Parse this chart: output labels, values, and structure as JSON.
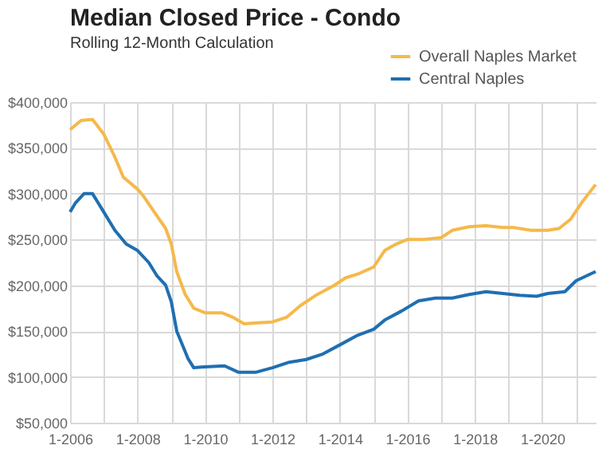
{
  "chart_data": {
    "type": "line",
    "title": "Median Closed Price - Condo",
    "subtitle": "Rolling 12-Month Calculation",
    "xlim": [
      "2006-01",
      "2021-08"
    ],
    "ylim": [
      50000,
      400000
    ],
    "xticks": [
      {
        "value": "2006-01",
        "label": "1-2006"
      },
      {
        "value": "2007-01",
        "label": null
      },
      {
        "value": "2008-01",
        "label": "1-2008"
      },
      {
        "value": "2009-01",
        "label": null
      },
      {
        "value": "2010-01",
        "label": "1-2010"
      },
      {
        "value": "2011-01",
        "label": null
      },
      {
        "value": "2012-01",
        "label": "1-2012"
      },
      {
        "value": "2013-01",
        "label": null
      },
      {
        "value": "2014-01",
        "label": "1-2014"
      },
      {
        "value": "2015-01",
        "label": null
      },
      {
        "value": "2016-01",
        "label": "1-2016"
      },
      {
        "value": "2017-01",
        "label": null
      },
      {
        "value": "2018-01",
        "label": "1-2018"
      },
      {
        "value": "2019-01",
        "label": null
      },
      {
        "value": "2020-01",
        "label": "1-2020"
      },
      {
        "value": "2021-01",
        "label": null
      }
    ],
    "yticks": [
      {
        "value": 50000,
        "label": "$50,000"
      },
      {
        "value": 100000,
        "label": "$100,000"
      },
      {
        "value": 150000,
        "label": "$150,000"
      },
      {
        "value": 200000,
        "label": "$200,000"
      },
      {
        "value": 250000,
        "label": "$250,000"
      },
      {
        "value": 300000,
        "label": "$300,000"
      },
      {
        "value": 350000,
        "label": "$350,000"
      },
      {
        "value": 400000,
        "label": "$400,000"
      }
    ],
    "grid": true,
    "legend": "top right",
    "line_style": "solid",
    "series": [
      {
        "name": "Overall Naples Market",
        "color": "#f5b94a",
        "x": [
          "2006-01",
          "2006-05",
          "2006-09",
          "2007-01",
          "2007-05",
          "2007-08",
          "2008-01",
          "2008-03",
          "2008-07",
          "2008-11",
          "2009-01",
          "2009-03",
          "2009-06",
          "2009-09",
          "2010-01",
          "2010-07",
          "2010-11",
          "2011-03",
          "2011-08",
          "2012-01",
          "2012-06",
          "2012-11",
          "2013-05",
          "2013-11",
          "2014-03",
          "2014-08",
          "2015-01",
          "2015-05",
          "2015-09",
          "2016-01",
          "2016-07",
          "2017-01",
          "2017-05",
          "2017-11",
          "2018-05",
          "2018-11",
          "2019-03",
          "2019-09",
          "2020-03",
          "2020-07",
          "2020-11",
          "2021-03",
          "2021-08"
        ],
        "values": [
          370000,
          380000,
          381000,
          365000,
          340000,
          318000,
          305000,
          298000,
          280000,
          262000,
          245000,
          215000,
          190000,
          175000,
          170000,
          170000,
          165000,
          158000,
          159000,
          160000,
          165000,
          178000,
          190000,
          200000,
          208000,
          213000,
          220000,
          238000,
          245000,
          250000,
          250000,
          252000,
          260000,
          264000,
          265000,
          263000,
          263000,
          260000,
          260000,
          262000,
          272000,
          290000,
          310000
        ]
      },
      {
        "name": "Central Naples",
        "color": "#1f6fb2",
        "x": [
          "2006-01",
          "2006-03",
          "2006-06",
          "2006-09",
          "2007-01",
          "2007-05",
          "2007-09",
          "2008-01",
          "2008-05",
          "2008-08",
          "2008-11",
          "2009-01",
          "2009-03",
          "2009-07",
          "2009-09",
          "2010-01",
          "2010-08",
          "2011-01",
          "2011-07",
          "2012-01",
          "2012-07",
          "2013-01",
          "2013-07",
          "2014-01",
          "2014-07",
          "2015-01",
          "2015-05",
          "2015-11",
          "2016-05",
          "2016-11",
          "2017-05",
          "2017-11",
          "2018-05",
          "2018-11",
          "2019-05",
          "2019-11",
          "2020-03",
          "2020-09",
          "2021-01",
          "2021-08"
        ],
        "values": [
          280000,
          290000,
          300000,
          300000,
          280000,
          260000,
          245000,
          238000,
          225000,
          210000,
          200000,
          182000,
          150000,
          120000,
          110000,
          111000,
          112000,
          105000,
          105000,
          110000,
          116000,
          119000,
          125000,
          135000,
          145000,
          152000,
          162000,
          172000,
          183000,
          186000,
          186000,
          190000,
          193000,
          191000,
          189000,
          188000,
          191000,
          193000,
          205000,
          215000
        ]
      }
    ]
  }
}
